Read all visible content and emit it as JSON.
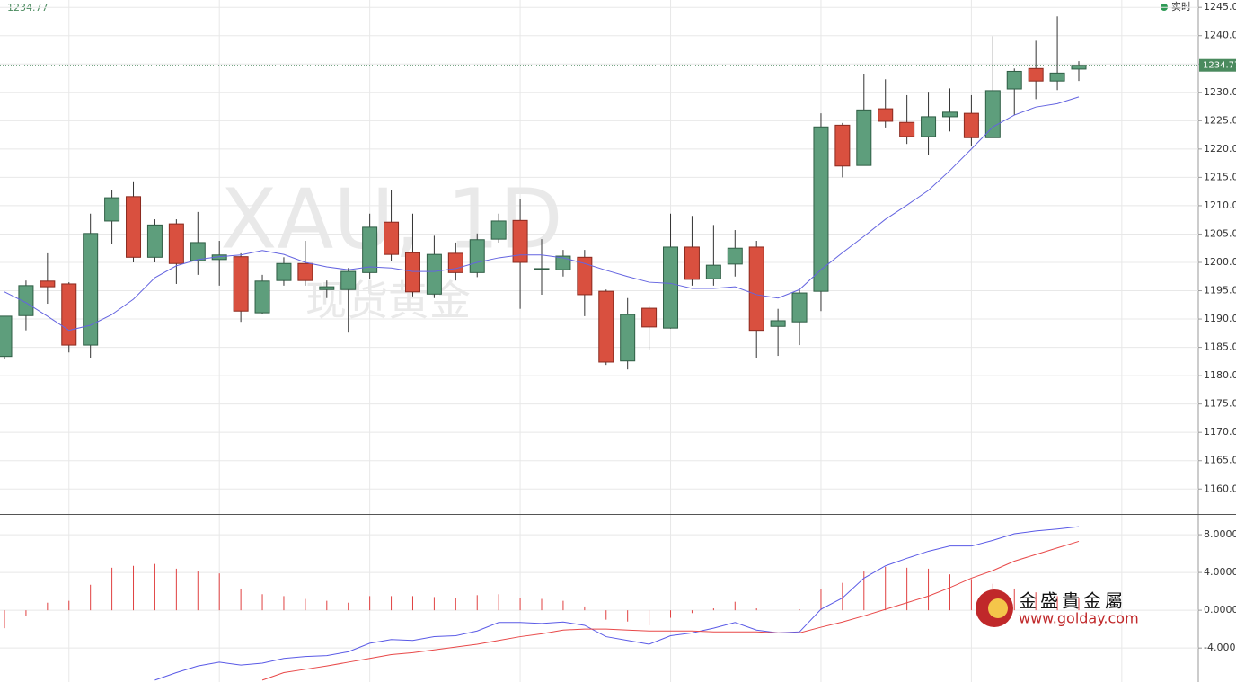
{
  "chart_data": [
    {
      "type": "candlestick",
      "title": "XAU, 1D",
      "subtitle": "现货黄金",
      "status": "实时",
      "last_price": 1234.77,
      "up_color": "#5e9e7c",
      "down_color": "#d9503f",
      "grid": true,
      "open": [
        1183.4,
        1190.6,
        1196.7,
        1196.2,
        1185.4,
        1207.3,
        1211.6,
        1200.9,
        1206.8,
        1200.3,
        1200.5,
        1201.0,
        1191.1,
        1196.8,
        1199.8,
        1195.2,
        1195.2,
        1198.2,
        1207.1,
        1201.7,
        1194.4,
        1201.6,
        1198.2,
        1204.1,
        1207.4,
        1198.9,
        1198.7,
        1200.9,
        1194.9,
        1182.6,
        1191.9,
        1188.4,
        1202.7,
        1197.1,
        1199.7,
        1202.7,
        1188.7,
        1189.5,
        1194.9,
        1224.2,
        1217.1,
        1227.1,
        1224.7,
        1222.2,
        1225.7,
        1226.3,
        1222.0,
        1230.6,
        1234.2,
        1232.0,
        1234.1
      ],
      "high": [
        1190.5,
        1196.8,
        1201.6,
        1196.5,
        1208.6,
        1212.7,
        1214.3,
        1207.6,
        1207.6,
        1208.9,
        1203.8,
        1201.6,
        1197.8,
        1200.9,
        1203.8,
        1196.8,
        1199.0,
        1208.6,
        1212.7,
        1208.6,
        1204.7,
        1203.5,
        1205.1,
        1208.6,
        1211.1,
        1204.1,
        1202.2,
        1202.2,
        1195.2,
        1193.7,
        1192.4,
        1208.6,
        1208.2,
        1206.6,
        1205.7,
        1203.8,
        1191.8,
        1195.2,
        1226.3,
        1224.6,
        1233.3,
        1232.3,
        1229.5,
        1230.1,
        1230.7,
        1229.5,
        1239.9,
        1234.2,
        1239.1,
        1243.4,
        1235.5
      ],
      "low": [
        1183.0,
        1188.0,
        1192.7,
        1184.1,
        1183.2,
        1203.2,
        1200.0,
        1200.0,
        1196.2,
        1197.8,
        1195.9,
        1189.5,
        1190.8,
        1195.9,
        1195.9,
        1193.7,
        1187.6,
        1197.1,
        1200.3,
        1194.0,
        1193.7,
        1196.8,
        1197.4,
        1203.5,
        1191.8,
        1194.3,
        1197.5,
        1190.5,
        1181.9,
        1181.1,
        1184.5,
        1188.3,
        1195.9,
        1195.9,
        1197.5,
        1183.2,
        1183.5,
        1185.4,
        1191.4,
        1215.0,
        1217.1,
        1223.8,
        1220.9,
        1219.0,
        1223.1,
        1220.6,
        1222.0,
        1226.0,
        1228.8,
        1230.4,
        1232.0
      ],
      "close": [
        1190.5,
        1195.9,
        1195.7,
        1185.4,
        1205.1,
        1211.4,
        1200.9,
        1206.6,
        1199.8,
        1203.5,
        1201.3,
        1191.4,
        1196.7,
        1199.8,
        1196.8,
        1195.7,
        1198.4,
        1206.2,
        1201.4,
        1194.8,
        1201.4,
        1198.2,
        1204.0,
        1207.3,
        1200.0,
        1198.9,
        1201.1,
        1194.3,
        1182.4,
        1190.8,
        1188.6,
        1202.7,
        1197.0,
        1199.5,
        1202.5,
        1188.0,
        1189.7,
        1194.6,
        1223.9,
        1217.0,
        1226.9,
        1224.9,
        1222.2,
        1225.7,
        1226.5,
        1222.0,
        1230.3,
        1233.7,
        1232.0,
        1233.4,
        1234.77
      ],
      "ma": {
        "color": "#6464e0",
        "values": [
          1194.8,
          1192.9,
          1190.5,
          1188.0,
          1188.9,
          1190.8,
          1193.5,
          1197.3,
          1199.4,
          1200.5,
          1201.0,
          1201.3,
          1202.1,
          1201.4,
          1200.0,
          1199.2,
          1198.7,
          1199.2,
          1199.0,
          1198.4,
          1198.4,
          1198.9,
          1200.0,
          1200.8,
          1201.3,
          1201.3,
          1200.8,
          1199.8,
          1198.6,
          1197.5,
          1196.5,
          1196.3,
          1195.4,
          1195.4,
          1195.7,
          1194.3,
          1193.7,
          1195.2,
          1198.7,
          1201.7,
          1204.6,
          1207.6,
          1210.1,
          1212.7,
          1216.2,
          1220.0,
          1223.9,
          1226.0,
          1227.4,
          1228.0,
          1229.2
        ]
      },
      "ylim": [
        1155.6,
        1246.3
      ],
      "yticks": [
        {
          "value": 1245,
          "label": "1245.0"
        },
        {
          "value": 1240,
          "label": "1240.0"
        },
        {
          "value": 1235,
          "label": "1235.0"
        },
        {
          "value": 1230,
          "label": "1230.0"
        },
        {
          "value": 1225,
          "label": "1225.0"
        },
        {
          "value": 1220,
          "label": "1220.0"
        },
        {
          "value": 1215,
          "label": "1215.0"
        },
        {
          "value": 1210,
          "label": "1210.0"
        },
        {
          "value": 1205,
          "label": "1205.0"
        },
        {
          "value": 1200,
          "label": "1200.0"
        },
        {
          "value": 1195,
          "label": "1195.0"
        },
        {
          "value": 1190,
          "label": "1190.0"
        },
        {
          "value": 1185,
          "label": "1185.0"
        },
        {
          "value": 1180,
          "label": "1180.0"
        },
        {
          "value": 1175,
          "label": "1175.0"
        },
        {
          "value": 1170,
          "label": "1170.0"
        },
        {
          "value": 1165,
          "label": "1165.0"
        },
        {
          "value": 1160,
          "label": "1160.0"
        }
      ]
    },
    {
      "type": "macd",
      "grid": true,
      "histogram": {
        "color": "#e04040",
        "values": [
          -1.9,
          -0.6,
          0.8,
          1.0,
          2.7,
          4.5,
          4.7,
          4.9,
          4.4,
          4.1,
          3.9,
          2.3,
          1.7,
          1.5,
          1.2,
          1.0,
          0.8,
          1.5,
          1.5,
          1.5,
          1.4,
          1.3,
          1.6,
          1.7,
          1.3,
          1.2,
          1.0,
          0.4,
          -1.0,
          -1.2,
          -1.6,
          -0.8,
          -0.3,
          0.2,
          0.9,
          0.2,
          0.0,
          0.1,
          2.2,
          2.9,
          4.1,
          4.6,
          4.5,
          4.4,
          3.8,
          3.3,
          2.8,
          2.3,
          1.9,
          1.5,
          1.25
        ]
      },
      "series": [
        {
          "color": "#5a5ae6",
          "values": [
            null,
            null,
            null,
            null,
            null,
            null,
            null,
            -7.4,
            -6.6,
            -5.9,
            -5.5,
            -5.8,
            -5.6,
            -5.1,
            -4.9,
            -4.8,
            -4.4,
            -3.5,
            -3.1,
            -3.2,
            -2.8,
            -2.7,
            -2.2,
            -1.3,
            -1.3,
            -1.4,
            -1.25,
            -1.6,
            -2.8,
            -3.2,
            -3.6,
            -2.7,
            -2.4,
            -1.9,
            -1.3,
            -2.1,
            -2.4,
            -2.3,
            0.1,
            1.3,
            3.4,
            4.7,
            5.5,
            6.25,
            6.8,
            6.8,
            7.4,
            8.1,
            8.4,
            8.6,
            8.85
          ]
        },
        {
          "color": "#e84848",
          "values": [
            null,
            null,
            null,
            null,
            null,
            null,
            null,
            null,
            null,
            null,
            null,
            null,
            -7.4,
            -6.6,
            -6.25,
            -5.9,
            -5.5,
            -5.1,
            -4.7,
            -4.5,
            -4.2,
            -3.9,
            -3.6,
            -3.2,
            -2.8,
            -2.5,
            -2.1,
            -2.0,
            -2.0,
            -2.1,
            -2.2,
            -2.2,
            -2.2,
            -2.3,
            -2.3,
            -2.3,
            -2.4,
            -2.4,
            -1.8,
            -1.25,
            -0.6,
            0.1,
            0.8,
            1.5,
            2.4,
            3.4,
            4.2,
            5.2,
            5.9,
            6.6,
            7.3
          ]
        }
      ],
      "ylim": [
        -7.6,
        10.1
      ],
      "yticks": [
        {
          "value": 8,
          "label": "8.0000"
        },
        {
          "value": 4,
          "label": "4.0000"
        },
        {
          "value": 0,
          "label": "0.0000"
        },
        {
          "value": -4,
          "label": "-4.000"
        }
      ]
    }
  ],
  "brand": {
    "name": "金盛貴金屬",
    "url": "www.golday.com"
  }
}
